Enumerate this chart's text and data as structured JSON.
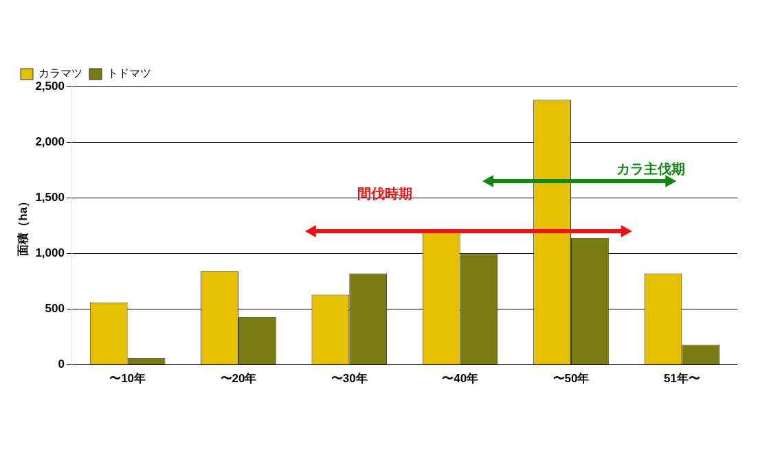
{
  "chart_data": {
    "type": "bar",
    "ylabel": "面積（ha）",
    "categories": [
      "〜10年",
      "〜20年",
      "〜30年",
      "〜40年",
      "〜50年",
      "51年〜"
    ],
    "series": [
      {
        "name": "カラマツ",
        "color": "#e6bf00",
        "values": [
          560,
          840,
          630,
          1200,
          2380,
          820
        ]
      },
      {
        "name": "トドマツ",
        "color": "#7a7a10",
        "values": [
          60,
          430,
          820,
          1000,
          1140,
          180
        ]
      }
    ],
    "ylim": [
      0,
      2500
    ],
    "yticks": [
      {
        "value": 0,
        "label": "0"
      },
      {
        "value": 500,
        "label": "500"
      },
      {
        "value": 1000,
        "label": "1,000"
      },
      {
        "value": 1500,
        "label": "1,500"
      },
      {
        "value": 2000,
        "label": "2,000"
      },
      {
        "value": 2500,
        "label": "2,500"
      }
    ],
    "grid": "y",
    "legend": "top left",
    "annotations": [
      "間伐時期",
      "カラ主伐期"
    ]
  }
}
